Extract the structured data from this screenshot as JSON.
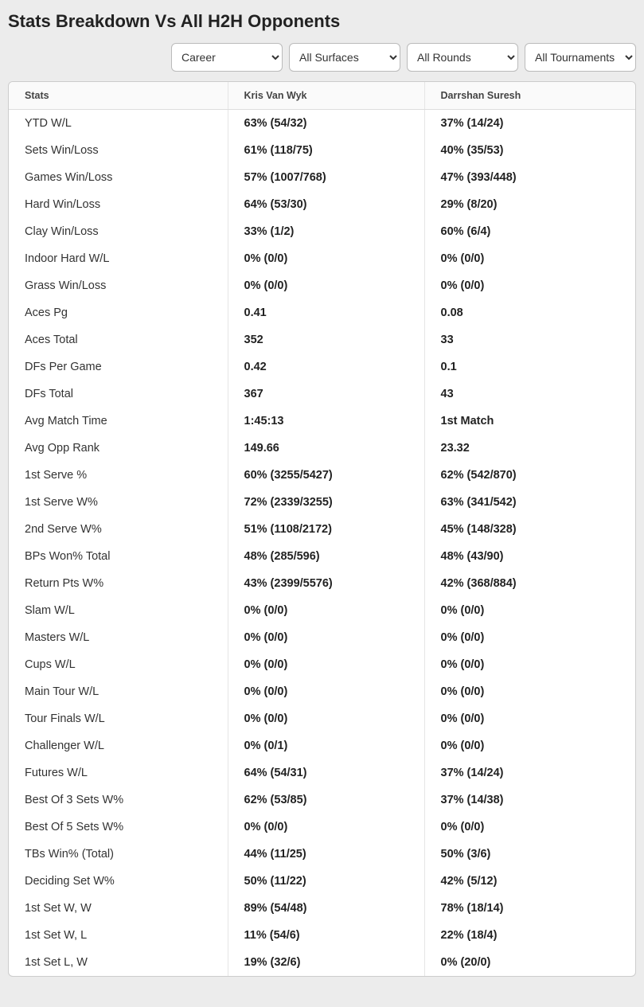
{
  "title": "Stats Breakdown Vs All H2H Opponents",
  "filters": {
    "career": "Career",
    "surfaces": "All Surfaces",
    "rounds": "All Rounds",
    "tourn": "All Tournaments"
  },
  "columns": {
    "stats": "Stats",
    "player1": "Kris Van Wyk",
    "player2": "Darrshan Suresh"
  },
  "rows": [
    {
      "label": "YTD W/L",
      "p1": "63% (54/32)",
      "p2": "37% (14/24)"
    },
    {
      "label": "Sets Win/Loss",
      "p1": "61% (118/75)",
      "p2": "40% (35/53)"
    },
    {
      "label": "Games Win/Loss",
      "p1": "57% (1007/768)",
      "p2": "47% (393/448)"
    },
    {
      "label": "Hard Win/Loss",
      "p1": "64% (53/30)",
      "p2": "29% (8/20)"
    },
    {
      "label": "Clay Win/Loss",
      "p1": "33% (1/2)",
      "p2": "60% (6/4)"
    },
    {
      "label": "Indoor Hard W/L",
      "p1": "0% (0/0)",
      "p2": "0% (0/0)"
    },
    {
      "label": "Grass Win/Loss",
      "p1": "0% (0/0)",
      "p2": "0% (0/0)"
    },
    {
      "label": "Aces Pg",
      "p1": "0.41",
      "p2": "0.08"
    },
    {
      "label": "Aces Total",
      "p1": "352",
      "p2": "33"
    },
    {
      "label": "DFs Per Game",
      "p1": "0.42",
      "p2": "0.1"
    },
    {
      "label": "DFs Total",
      "p1": "367",
      "p2": "43"
    },
    {
      "label": "Avg Match Time",
      "p1": "1:45:13",
      "p2": "1st Match"
    },
    {
      "label": "Avg Opp Rank",
      "p1": "149.66",
      "p2": "23.32"
    },
    {
      "label": "1st Serve %",
      "p1": "60% (3255/5427)",
      "p2": "62% (542/870)"
    },
    {
      "label": "1st Serve W%",
      "p1": "72% (2339/3255)",
      "p2": "63% (341/542)"
    },
    {
      "label": "2nd Serve W%",
      "p1": "51% (1108/2172)",
      "p2": "45% (148/328)"
    },
    {
      "label": "BPs Won% Total",
      "p1": "48% (285/596)",
      "p2": "48% (43/90)"
    },
    {
      "label": "Return Pts W%",
      "p1": "43% (2399/5576)",
      "p2": "42% (368/884)"
    },
    {
      "label": "Slam W/L",
      "p1": "0% (0/0)",
      "p2": "0% (0/0)"
    },
    {
      "label": "Masters W/L",
      "p1": "0% (0/0)",
      "p2": "0% (0/0)"
    },
    {
      "label": "Cups W/L",
      "p1": "0% (0/0)",
      "p2": "0% (0/0)"
    },
    {
      "label": "Main Tour W/L",
      "p1": "0% (0/0)",
      "p2": "0% (0/0)"
    },
    {
      "label": "Tour Finals W/L",
      "p1": "0% (0/0)",
      "p2": "0% (0/0)"
    },
    {
      "label": "Challenger W/L",
      "p1": "0% (0/1)",
      "p2": "0% (0/0)"
    },
    {
      "label": "Futures W/L",
      "p1": "64% (54/31)",
      "p2": "37% (14/24)"
    },
    {
      "label": "Best Of 3 Sets W%",
      "p1": "62% (53/85)",
      "p2": "37% (14/38)"
    },
    {
      "label": "Best Of 5 Sets W%",
      "p1": "0% (0/0)",
      "p2": "0% (0/0)"
    },
    {
      "label": "TBs Win% (Total)",
      "p1": "44% (11/25)",
      "p2": "50% (3/6)"
    },
    {
      "label": "Deciding Set W%",
      "p1": "50% (11/22)",
      "p2": "42% (5/12)"
    },
    {
      "label": "1st Set W, W",
      "p1": "89% (54/48)",
      "p2": "78% (18/14)"
    },
    {
      "label": "1st Set W, L",
      "p1": "11% (54/6)",
      "p2": "22% (18/4)"
    },
    {
      "label": "1st Set L, W",
      "p1": "19% (32/6)",
      "p2": "0% (20/0)"
    }
  ]
}
